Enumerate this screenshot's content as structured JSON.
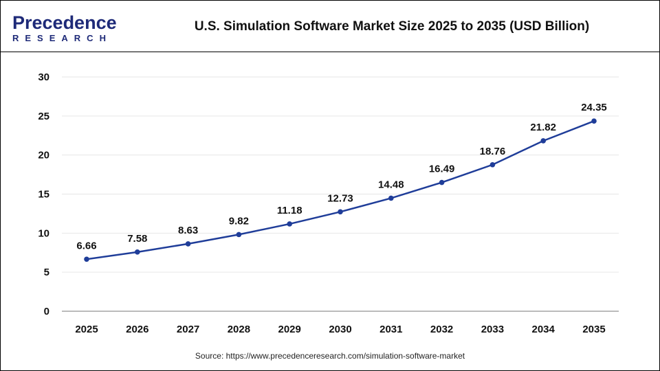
{
  "header": {
    "logo_top": "Precedence",
    "logo_bottom": "RESEARCH",
    "title": "U.S. Simulation Software Market Size 2025 to 2035 (USD Billion)"
  },
  "source": "Source: https://www.precedenceresearch.com/simulation-software-market",
  "chart_data": {
    "type": "line",
    "title": "U.S. Simulation Software Market Size 2025 to 2035 (USD Billion)",
    "categories": [
      "2025",
      "2026",
      "2027",
      "2028",
      "2029",
      "2030",
      "2031",
      "2032",
      "2033",
      "2034",
      "2035"
    ],
    "values": [
      6.66,
      7.58,
      8.63,
      9.82,
      11.18,
      12.73,
      14.48,
      16.49,
      18.76,
      21.82,
      24.35
    ],
    "value_labels": [
      "6.66",
      "7.58",
      "8.63",
      "9.82",
      "11.18",
      "12.73",
      "14.48",
      "16.49",
      "18.76",
      "21.82",
      "24.35"
    ],
    "ylim": [
      0,
      30
    ],
    "yticks": [
      "0",
      "5",
      "10",
      "15",
      "20",
      "25",
      "30"
    ],
    "grid": true,
    "line_color": "#1f3d99"
  }
}
